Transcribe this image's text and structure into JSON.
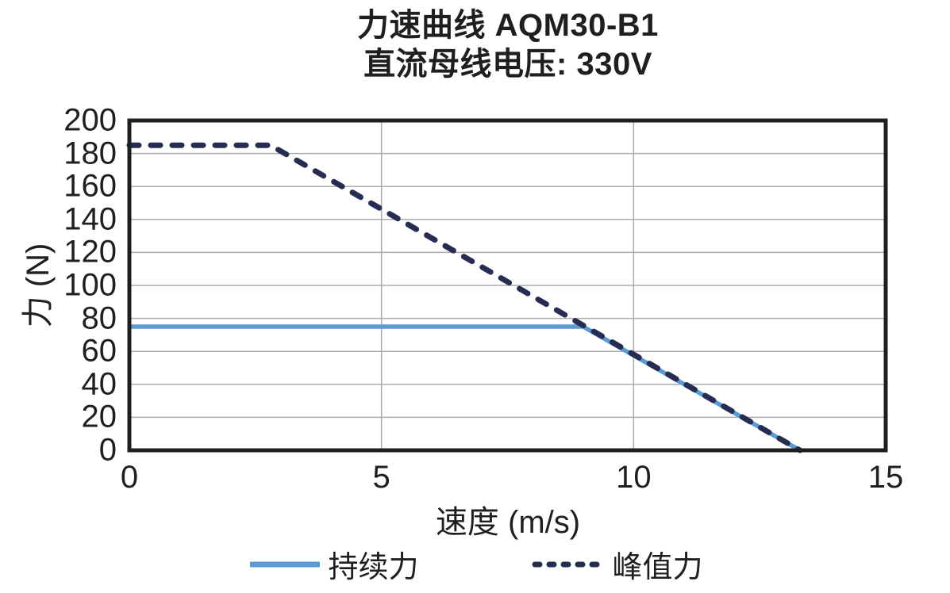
{
  "page": {
    "background": "#ffffff"
  },
  "chart_data": {
    "type": "line",
    "title": "力速曲线 AQM30-B1",
    "subtitle": "直流母线电压: 330V",
    "xlabel": "速度 (m/s)",
    "ylabel": "力 (N)",
    "xlim": [
      0,
      15
    ],
    "ylim": [
      0,
      200
    ],
    "xticks": [
      0,
      5,
      10,
      15
    ],
    "yticks": [
      0,
      20,
      40,
      60,
      80,
      100,
      120,
      140,
      160,
      180,
      200
    ],
    "grid": true,
    "grid_color": "#ABABAB",
    "frame_color": "#1f1f1f",
    "legend_position": "bottom",
    "series": [
      {
        "name": "持续力",
        "style": "solid",
        "color": "#5B9BD5",
        "points": [
          [
            0,
            75
          ],
          [
            9,
            75
          ],
          [
            13.3,
            0
          ]
        ]
      },
      {
        "name": "峰值力",
        "style": "dashed",
        "color": "#272D52",
        "points": [
          [
            0,
            185
          ],
          [
            2.8,
            185
          ],
          [
            13.3,
            0
          ]
        ]
      }
    ]
  }
}
